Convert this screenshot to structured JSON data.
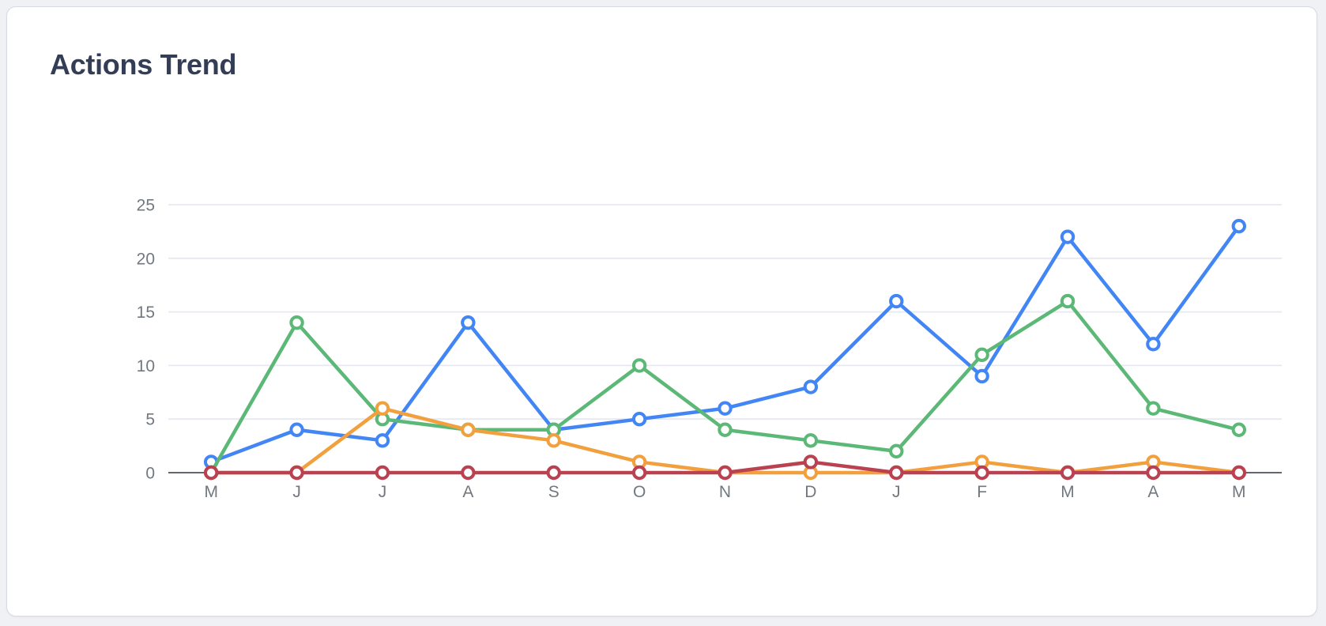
{
  "page": {
    "background_color": "#F0F1F4"
  },
  "card": {
    "title": "Actions Trend",
    "title_color": "#333E56",
    "background_color": "#FFFFFF",
    "border_color": "#D6DAE1"
  },
  "chart_data": {
    "type": "line",
    "title": "Actions Trend",
    "categories": [
      "M",
      "J",
      "J",
      "A",
      "S",
      "O",
      "N",
      "D",
      "J",
      "F",
      "M",
      "A",
      "M"
    ],
    "series": [
      {
        "name": "series-blue",
        "color": "#4285F4",
        "values": [
          1,
          4,
          3,
          14,
          4,
          5,
          6,
          8,
          16,
          9,
          22,
          12,
          23
        ]
      },
      {
        "name": "series-green",
        "color": "#5CB876",
        "values": [
          0,
          14,
          5,
          4,
          4,
          10,
          4,
          3,
          2,
          11,
          16,
          6,
          4
        ]
      },
      {
        "name": "series-orange",
        "color": "#F2A03D",
        "values": [
          0,
          0,
          6,
          4,
          3,
          1,
          0,
          0,
          0,
          1,
          0,
          1,
          0
        ]
      },
      {
        "name": "series-red",
        "color": "#BA4150",
        "values": [
          0,
          0,
          0,
          0,
          0,
          0,
          0,
          1,
          0,
          0,
          0,
          0,
          0
        ]
      }
    ],
    "yticks": [
      0,
      5,
      10,
      15,
      20,
      25
    ],
    "ylim": [
      0,
      25
    ],
    "xlabel": "",
    "ylabel": "",
    "grid": true,
    "legend": false,
    "marker_style": "open-circle",
    "grid_color": "#E7E9F0",
    "axis_color": "#62676E",
    "tick_color": "#6E7580",
    "tick_label_color": "#71787F"
  }
}
